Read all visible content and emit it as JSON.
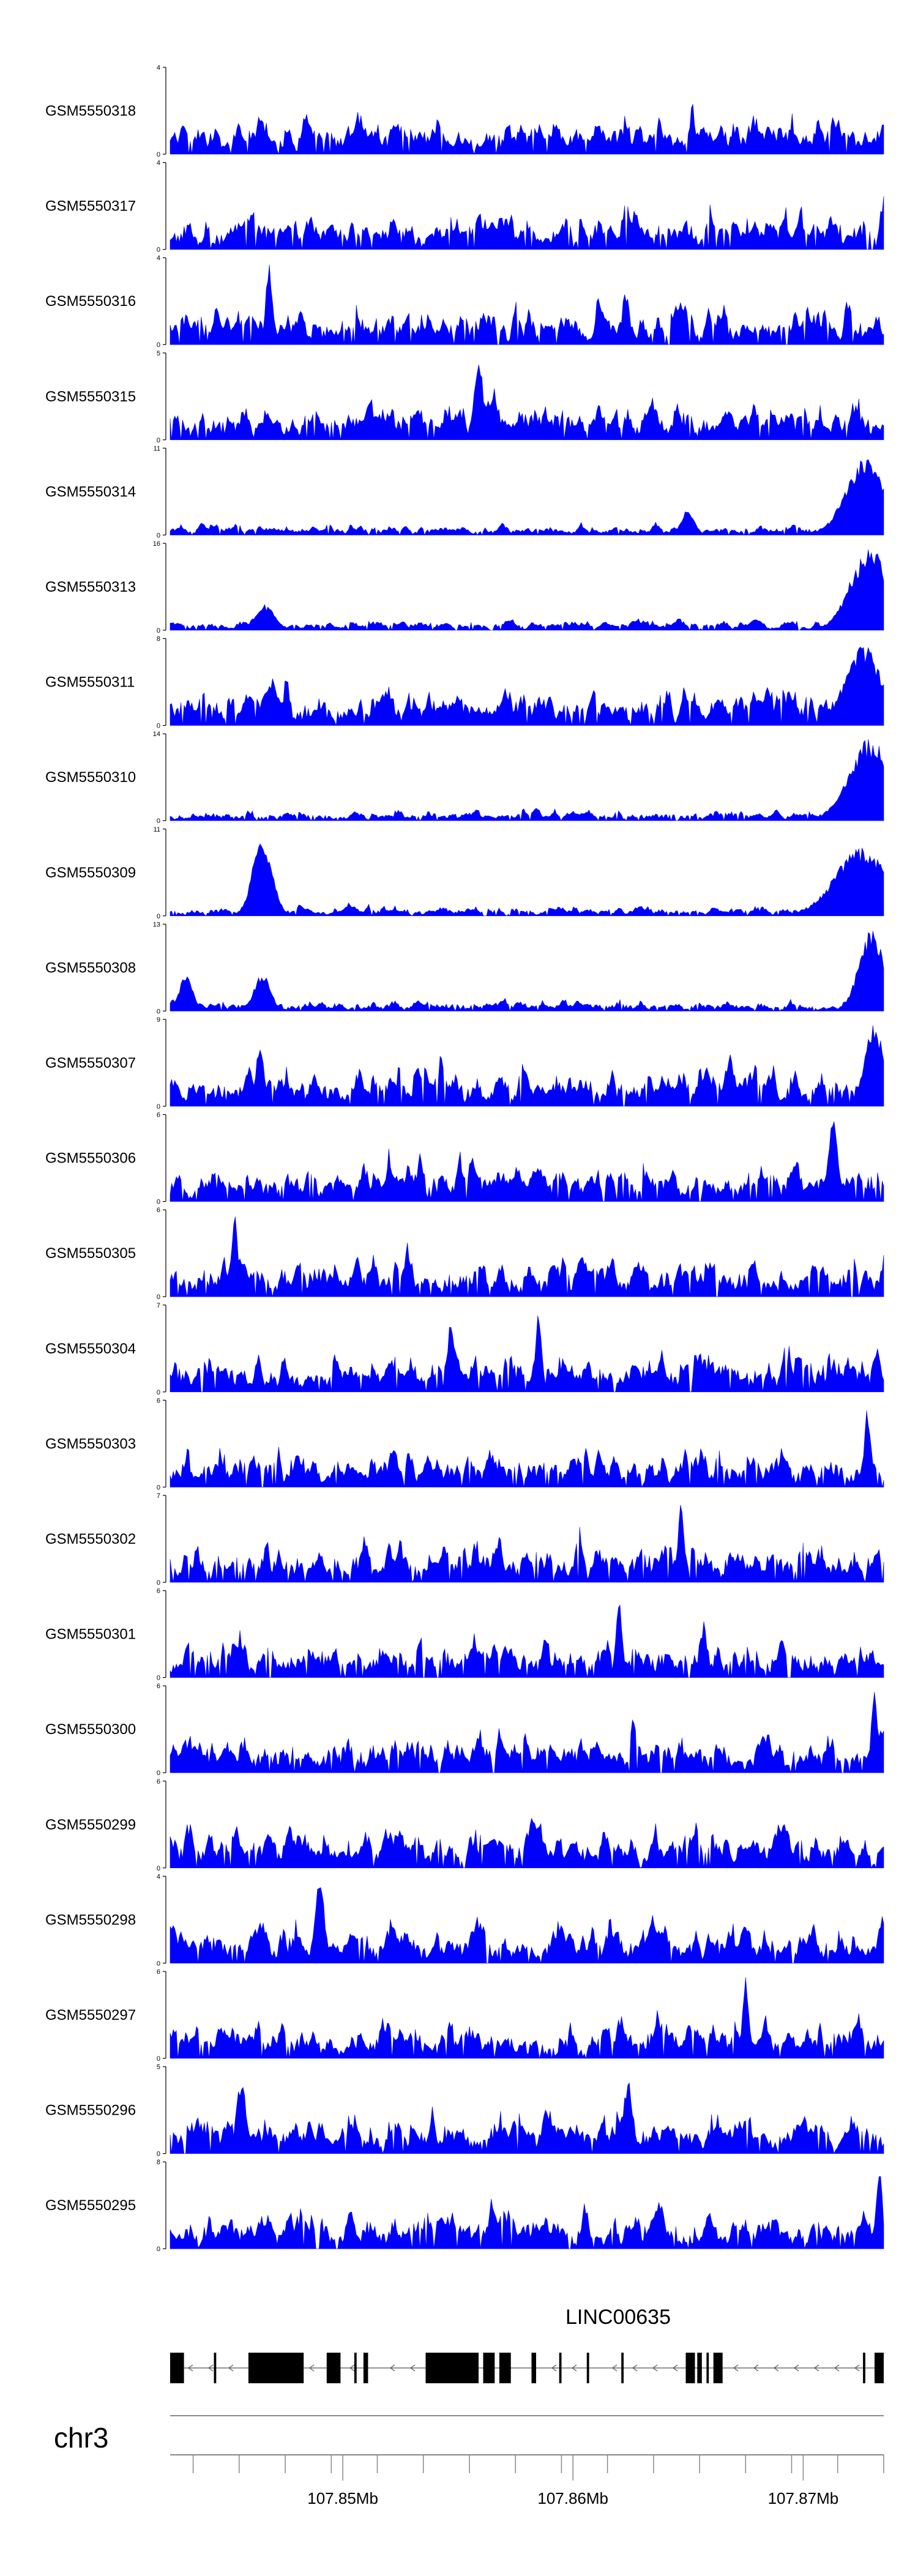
{
  "chart_data": {
    "type": "area",
    "colors": {
      "signal": "#0000ff",
      "axis": "#000000",
      "gene": "#000000",
      "ideogram": "#888888"
    },
    "x_axis": {
      "range_mb": [
        107.8425,
        107.8735
      ],
      "ticks_mb": [
        107.8435,
        107.8455,
        107.8475,
        107.8495,
        107.8515,
        107.8535,
        107.8555,
        107.8575,
        107.8595,
        107.8615,
        107.8635,
        107.8655,
        107.8675,
        107.8695,
        107.8715,
        107.8735
      ],
      "tick_labels": [
        {
          "mb": 107.85,
          "label": "107.85Mb"
        },
        {
          "mb": 107.86,
          "label": "107.86Mb"
        },
        {
          "mb": 107.87,
          "label": "107.87Mb"
        }
      ]
    },
    "chromosome": "chr3",
    "gene": {
      "name": "LINC00635",
      "strand": "-",
      "exons_mb": [
        [
          107.8425,
          107.8431
        ],
        [
          107.8444,
          107.8445
        ],
        [
          107.8459,
          107.8483
        ],
        [
          107.8493,
          107.8499
        ],
        [
          107.8505,
          107.8506
        ],
        [
          107.8509,
          107.8511
        ],
        [
          107.8536,
          107.8559
        ],
        [
          107.8561,
          107.8566
        ],
        [
          107.8568,
          107.8573
        ],
        [
          107.8582,
          107.8584
        ],
        [
          107.8594,
          107.8595
        ],
        [
          107.8606,
          107.8607
        ],
        [
          107.8621,
          107.8622
        ],
        [
          107.8649,
          107.8653
        ],
        [
          107.8654,
          107.8656
        ],
        [
          107.8658,
          107.8659
        ],
        [
          107.8661,
          107.8665
        ],
        [
          107.8726,
          107.8727
        ],
        [
          107.8731,
          107.8735
        ]
      ]
    },
    "tracks": [
      {
        "name": "GSM5550318",
        "ymax": 4,
        "seed": 318,
        "peaks": []
      },
      {
        "name": "GSM5550317",
        "ymax": 4,
        "seed": 317,
        "peaks": []
      },
      {
        "name": "GSM5550316",
        "ymax": 4,
        "seed": 316,
        "peaks": [
          [
            107.8468,
            0.95,
            0.0002
          ]
        ]
      },
      {
        "name": "GSM5550315",
        "ymax": 5,
        "seed": 315,
        "peaks": [
          [
            107.8559,
            0.95,
            0.0003
          ]
        ]
      },
      {
        "name": "GSM5550314",
        "ymax": 11,
        "seed": 314,
        "peaks": [
          [
            107.8727,
            0.9,
            0.0012
          ],
          [
            107.865,
            0.3,
            0.0004
          ]
        ]
      },
      {
        "name": "GSM5550313",
        "ymax": 16,
        "seed": 313,
        "peaks": [
          [
            107.8729,
            0.95,
            0.0012
          ],
          [
            107.8466,
            0.3,
            0.0006
          ]
        ]
      },
      {
        "name": "GSM5550311",
        "ymax": 8,
        "seed": 311,
        "peaks": [
          [
            107.8726,
            0.95,
            0.0011
          ],
          [
            107.8469,
            0.55,
            0.0005
          ]
        ]
      },
      {
        "name": "GSM5550310",
        "ymax": 14,
        "seed": 310,
        "peaks": [
          [
            107.8729,
            0.95,
            0.0013
          ]
        ]
      },
      {
        "name": "GSM5550309",
        "ymax": 11,
        "seed": 309,
        "peaks": [
          [
            107.8465,
            0.95,
            0.0006
          ],
          [
            107.8725,
            0.8,
            0.0016
          ]
        ]
      },
      {
        "name": "GSM5550308",
        "ymax": 13,
        "seed": 308,
        "peaks": [
          [
            107.873,
            0.95,
            0.0008
          ],
          [
            107.8465,
            0.45,
            0.0005
          ],
          [
            107.8432,
            0.45,
            0.0004
          ]
        ]
      },
      {
        "name": "GSM5550307",
        "ymax": 9,
        "seed": 307,
        "peaks": [
          [
            107.8731,
            0.95,
            0.0006
          ],
          [
            107.8464,
            0.65,
            0.0003
          ]
        ]
      },
      {
        "name": "GSM5550306",
        "ymax": 6,
        "seed": 306,
        "peaks": [
          [
            107.8713,
            0.95,
            0.0003
          ]
        ]
      },
      {
        "name": "GSM5550305",
        "ymax": 6,
        "seed": 305,
        "peaks": [
          [
            107.8453,
            0.95,
            0.0002
          ]
        ]
      },
      {
        "name": "GSM5550304",
        "ymax": 7,
        "seed": 304,
        "peaks": [
          [
            107.8547,
            0.95,
            0.0002
          ],
          [
            107.8585,
            0.9,
            0.0002
          ]
        ]
      },
      {
        "name": "GSM5550303",
        "ymax": 6,
        "seed": 303,
        "peaks": [
          [
            107.8728,
            0.95,
            0.0002
          ]
        ]
      },
      {
        "name": "GSM5550302",
        "ymax": 7,
        "seed": 302,
        "peaks": [
          [
            107.8647,
            0.95,
            0.0002
          ]
        ]
      },
      {
        "name": "GSM5550301",
        "ymax": 6,
        "seed": 301,
        "peaks": [
          [
            107.862,
            0.9,
            0.0002
          ]
        ]
      },
      {
        "name": "GSM5550300",
        "ymax": 6,
        "seed": 300,
        "peaks": [
          [
            107.8731,
            0.95,
            0.0002
          ]
        ]
      },
      {
        "name": "GSM5550299",
        "ymax": 6,
        "seed": 299,
        "peaks": []
      },
      {
        "name": "GSM5550298",
        "ymax": 4,
        "seed": 298,
        "peaks": [
          [
            107.849,
            0.95,
            0.0003
          ]
        ]
      },
      {
        "name": "GSM5550297",
        "ymax": 6,
        "seed": 297,
        "peaks": [
          [
            107.8675,
            0.95,
            0.0002
          ]
        ]
      },
      {
        "name": "GSM5550296",
        "ymax": 5,
        "seed": 296,
        "peaks": [
          [
            107.8456,
            0.9,
            0.0003
          ],
          [
            107.8624,
            0.85,
            0.0003
          ]
        ]
      },
      {
        "name": "GSM5550295",
        "ymax": 8,
        "seed": 295,
        "peaks": [
          [
            107.8733,
            0.95,
            0.0002
          ]
        ]
      }
    ]
  }
}
